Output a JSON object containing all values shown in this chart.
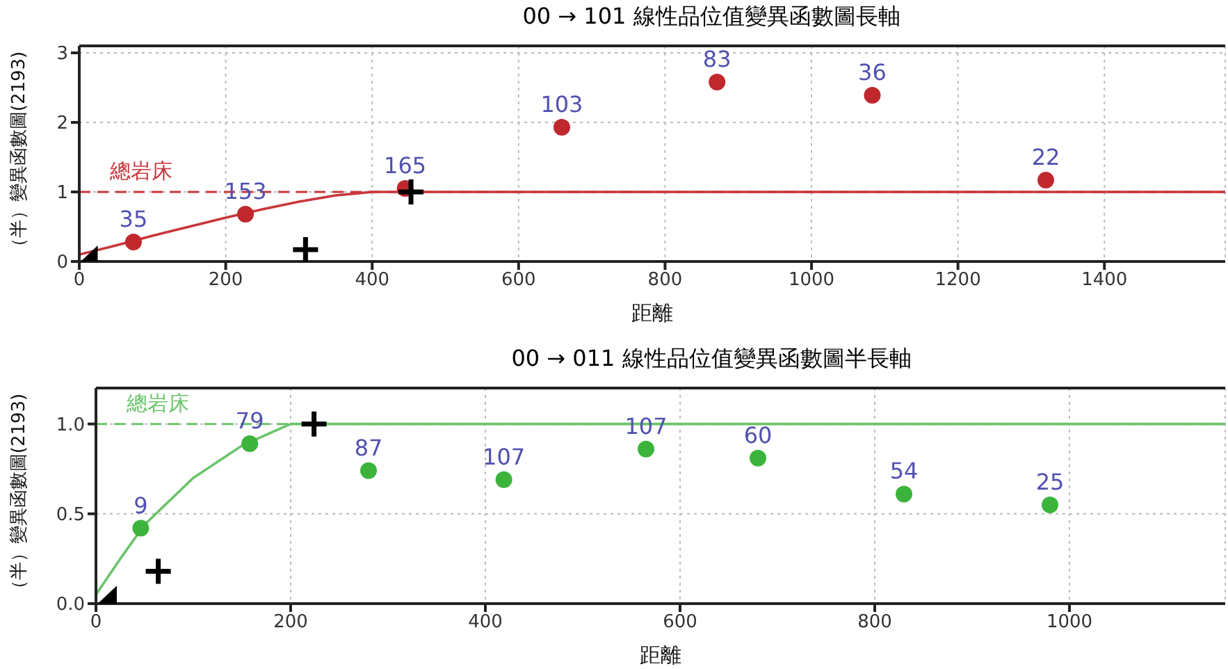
{
  "chart_data": [
    {
      "type": "scatter",
      "title": "00 → 101  線性品位值變異函數圖長軸",
      "xlabel": "距離",
      "ylabel": "（半）變異函數圖(2193)",
      "xlim": [
        0,
        1565
      ],
      "ylim": [
        0,
        3.1
      ],
      "xticks": [
        0,
        200,
        400,
        600,
        800,
        1000,
        1200,
        1400
      ],
      "yticks": [
        0,
        1,
        2,
        3
      ],
      "grid": true,
      "series": [
        {
          "type": "line",
          "color": "#c8373a",
          "line_style": "solid",
          "x": [
            0,
            50,
            100,
            150,
            200,
            250,
            300,
            350,
            400,
            1565
          ],
          "values": [
            0.1,
            0.23,
            0.37,
            0.5,
            0.63,
            0.75,
            0.86,
            0.95,
            1.0,
            1.0
          ]
        },
        {
          "type": "scatter",
          "color": "#c0282d",
          "marker": "circle",
          "x": [
            74,
            227,
            445,
            659,
            871,
            1083,
            1320
          ],
          "values": [
            0.28,
            0.68,
            1.05,
            1.93,
            2.58,
            2.39,
            1.17
          ]
        },
        {
          "type": "scatter",
          "color": "#000000",
          "marker": "cross",
          "x": [
            309,
            453
          ],
          "values": [
            0.17,
            1.0
          ]
        },
        {
          "type": "scatter",
          "color": "#000000",
          "marker": "triangle",
          "x": [
            10
          ],
          "values": [
            0.05
          ]
        }
      ],
      "annotations": [
        {
          "text": "35",
          "x": 74,
          "y": 0.28
        },
        {
          "text": "153",
          "x": 227,
          "y": 0.68
        },
        {
          "text": "165",
          "x": 445,
          "y": 1.05
        },
        {
          "text": "103",
          "x": 659,
          "y": 1.93
        },
        {
          "text": "83",
          "x": 871,
          "y": 2.58
        },
        {
          "text": "36",
          "x": 1083,
          "y": 2.39
        },
        {
          "text": "22",
          "x": 1320,
          "y": 1.17
        }
      ],
      "ref_lines": [
        {
          "axis": "y",
          "value": 1,
          "label": "總岩床",
          "color": "#c8373a",
          "line_style": "dashed"
        }
      ]
    },
    {
      "type": "scatter",
      "title": "00 → 011  線性品位值變異函數圖半長軸",
      "xlabel": "距離",
      "ylabel": "（半）變異函數圖(2193)",
      "xlim": [
        0,
        1160
      ],
      "ylim": [
        0,
        1.2
      ],
      "xticks": [
        0,
        200,
        400,
        600,
        800,
        1000
      ],
      "yticks": [
        {
          "value": 0,
          "label": "0.0"
        },
        0.5,
        {
          "value": 1,
          "label": "1.0"
        }
      ],
      "grid": true,
      "series": [
        {
          "type": "line",
          "color": "#6cc46c",
          "line_style": "solid",
          "x": [
            0,
            25,
            50,
            100,
            150,
            200,
            1160
          ],
          "values": [
            0.05,
            0.25,
            0.44,
            0.7,
            0.88,
            1.0,
            1.0
          ]
        },
        {
          "type": "scatter",
          "color": "#3cb43c",
          "marker": "circle",
          "x": [
            46,
            158,
            280,
            419,
            565,
            680,
            830,
            980
          ],
          "values": [
            0.42,
            0.89,
            0.74,
            0.69,
            0.86,
            0.81,
            0.61,
            0.55
          ]
        },
        {
          "type": "scatter",
          "color": "#000000",
          "marker": "cross",
          "x": [
            64,
            224
          ],
          "values": [
            0.18,
            1.0
          ]
        },
        {
          "type": "scatter",
          "color": "#000000",
          "marker": "triangle",
          "x": [
            10
          ],
          "values": [
            0.03
          ]
        }
      ],
      "annotations": [
        {
          "text": "9",
          "x": 46,
          "y": 0.42
        },
        {
          "text": "79",
          "x": 158,
          "y": 0.89
        },
        {
          "text": "87",
          "x": 280,
          "y": 0.74
        },
        {
          "text": "107",
          "x": 419,
          "y": 0.69
        },
        {
          "text": "107",
          "x": 565,
          "y": 0.86
        },
        {
          "text": "60",
          "x": 680,
          "y": 0.81
        },
        {
          "text": "54",
          "x": 830,
          "y": 0.61
        },
        {
          "text": "25",
          "x": 980,
          "y": 0.55
        }
      ],
      "ref_lines": [
        {
          "axis": "y",
          "value": 1,
          "label": "總岩床",
          "color": "#6cc46c",
          "line_style": "dashed"
        }
      ]
    }
  ]
}
